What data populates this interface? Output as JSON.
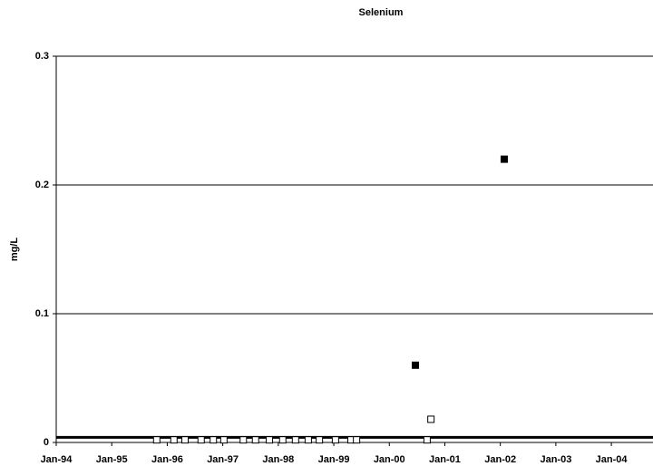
{
  "chart_data": {
    "type": "scatter",
    "title": "Selenium",
    "ylabel": "mg/L",
    "xlim": [
      1994,
      2004.75
    ],
    "ylim": [
      0,
      0.3
    ],
    "xticks": [
      {
        "value": 1994,
        "label": "Jan-94"
      },
      {
        "value": 1995,
        "label": "Jan-95"
      },
      {
        "value": 1996,
        "label": "Jan-96"
      },
      {
        "value": 1997,
        "label": "Jan-97"
      },
      {
        "value": 1998,
        "label": "Jan-98"
      },
      {
        "value": 1999,
        "label": "Jan-99"
      },
      {
        "value": 2000,
        "label": "Jan-00"
      },
      {
        "value": 2001,
        "label": "Jan-01"
      },
      {
        "value": 2002,
        "label": "Jan-02"
      },
      {
        "value": 2003,
        "label": "Jan-03"
      },
      {
        "value": 2004,
        "label": "Jan-04"
      }
    ],
    "yticks": [
      0,
      0.1,
      0.2,
      0.3
    ],
    "grid": true,
    "reference_line": 0.004,
    "series": [
      {
        "marker": "filled",
        "color": "#000000",
        "x": [
          2000.47,
          2002.07
        ],
        "values": [
          0.06,
          0.22
        ]
      },
      {
        "marker": "open",
        "color": "#000000",
        "x": [
          1995.81,
          1996.12,
          1996.32,
          1996.61,
          1996.83,
          1997.02,
          1997.37,
          1997.59,
          1997.84,
          1998.08,
          1998.31,
          1998.54,
          1998.74,
          1999.03,
          1999.31,
          1999.41,
          2000.68,
          2000.75
        ],
        "values": [
          0.002,
          0.002,
          0.002,
          0.002,
          0.002,
          0.002,
          0.002,
          0.002,
          0.002,
          0.002,
          0.002,
          0.002,
          0.002,
          0.002,
          0.002,
          0.002,
          0.002,
          0.018
        ]
      }
    ]
  }
}
